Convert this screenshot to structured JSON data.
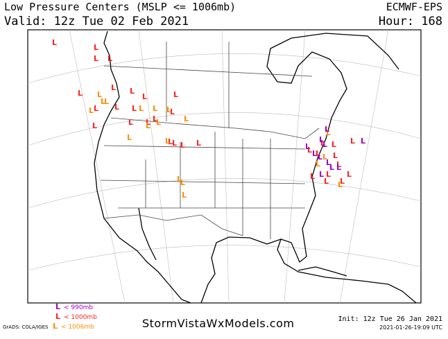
{
  "header": {
    "title": "Low Pressure Centers (MSLP <= 1006mb)",
    "valid": "Valid: 12z Tue 02 Feb 2021",
    "model": "ECMWF-EPS",
    "hour": "Hour: 168"
  },
  "legend": {
    "items": [
      {
        "marker": "L",
        "label": "< 990mb",
        "color": "#a000c8"
      },
      {
        "marker": "L",
        "label": "< 1000mb",
        "color": "#ff2020"
      },
      {
        "marker": "L",
        "label": "< 1006mb",
        "color": "#ff8c00"
      }
    ]
  },
  "footer": {
    "credit": "GrADS: COLA/IGES",
    "site": "StormVistaWxModels.com",
    "init": "Init: 12z Tue 26 Jan 2021",
    "timestamp": "2021-01-26-19:09 UTC"
  }
}
